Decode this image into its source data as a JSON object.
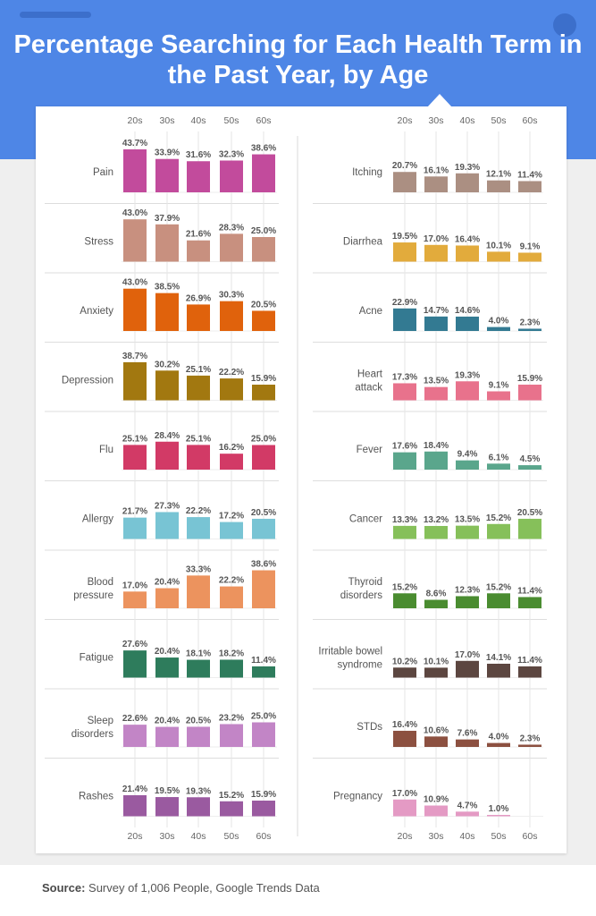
{
  "title": "Percentage Searching for Each Health Term in the Past Year, by Age",
  "source": {
    "label": "Source:",
    "text": "Survey of 1,006 People, Google Trends Data"
  },
  "chart_data": {
    "type": "bar",
    "categories": [
      "20s",
      "30s",
      "40s",
      "50s",
      "60s"
    ],
    "unit": "%",
    "panels": [
      {
        "column": "left",
        "items": [
          {
            "term": "Pain",
            "color": "#c24b9c",
            "values": [
              43.7,
              33.9,
              31.6,
              32.3,
              38.6
            ]
          },
          {
            "term": "Stress",
            "color": "#c8907f",
            "values": [
              43.0,
              37.9,
              21.6,
              28.3,
              25.0
            ]
          },
          {
            "term": "Anxiety",
            "color": "#e0620c",
            "values": [
              43.0,
              38.5,
              26.9,
              30.3,
              20.5
            ]
          },
          {
            "term": "Depression",
            "color": "#a27810",
            "values": [
              38.7,
              30.2,
              25.1,
              22.2,
              15.9
            ]
          },
          {
            "term": "Flu",
            "color": "#d23a66",
            "values": [
              25.1,
              28.4,
              25.1,
              16.2,
              25.0
            ]
          },
          {
            "term": "Allergy",
            "color": "#78c4d4",
            "values": [
              21.7,
              27.3,
              22.2,
              17.2,
              20.5
            ]
          },
          {
            "term": "Blood pressure",
            "color": "#ec935e",
            "values": [
              17.0,
              20.4,
              33.3,
              22.2,
              38.6
            ]
          },
          {
            "term": "Fatigue",
            "color": "#2e7c5c",
            "values": [
              27.6,
              20.4,
              18.1,
              18.2,
              11.4
            ]
          },
          {
            "term": "Sleep disorders",
            "color": "#c285c6",
            "values": [
              22.6,
              20.4,
              20.5,
              23.2,
              25.0
            ]
          },
          {
            "term": "Rashes",
            "color": "#9a5aa0",
            "values": [
              21.4,
              19.5,
              19.3,
              15.2,
              15.9
            ]
          }
        ]
      },
      {
        "column": "right",
        "items": [
          {
            "term": "Itching",
            "color": "#ab8f82",
            "values": [
              20.7,
              16.1,
              19.3,
              12.1,
              11.4
            ]
          },
          {
            "term": "Diarrhea",
            "color": "#e2ab3c",
            "values": [
              19.5,
              17.0,
              16.4,
              10.1,
              9.1
            ]
          },
          {
            "term": "Acne",
            "color": "#337a92",
            "values": [
              22.9,
              14.7,
              14.6,
              4.0,
              2.3
            ]
          },
          {
            "term": "Heart attack",
            "color": "#e8728c",
            "values": [
              17.3,
              13.5,
              19.3,
              9.1,
              15.9
            ]
          },
          {
            "term": "Fever",
            "color": "#5aa68c",
            "values": [
              17.6,
              18.4,
              9.4,
              6.1,
              4.5
            ]
          },
          {
            "term": "Cancer",
            "color": "#86c05a",
            "values": [
              13.3,
              13.2,
              13.5,
              15.2,
              20.5
            ]
          },
          {
            "term": "Thyroid disorders",
            "color": "#4a8c30",
            "values": [
              15.2,
              8.6,
              12.3,
              15.2,
              11.4
            ]
          },
          {
            "term": "Irritable bowel syndrome",
            "color": "#5c4640",
            "values": [
              10.2,
              10.1,
              17.0,
              14.1,
              11.4
            ]
          },
          {
            "term": "STDs",
            "color": "#8c5040",
            "values": [
              16.4,
              10.6,
              7.6,
              4.0,
              2.3
            ]
          },
          {
            "term": "Pregnancy",
            "color": "#e49ac4",
            "values": [
              17.0,
              10.9,
              4.7,
              1.0,
              null
            ]
          }
        ]
      }
    ]
  }
}
